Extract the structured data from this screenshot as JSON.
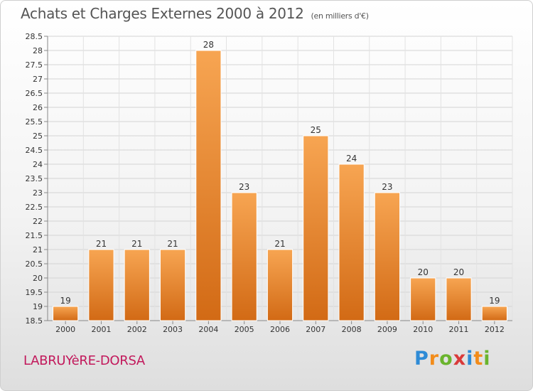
{
  "chart_data": {
    "type": "bar",
    "title": "Achats et Charges Externes 2000 à 2012",
    "subtitle": "(en milliers d'€)",
    "categories": [
      "2000",
      "2001",
      "2002",
      "2003",
      "2004",
      "2005",
      "2006",
      "2007",
      "2008",
      "2009",
      "2010",
      "2011",
      "2012"
    ],
    "values": [
      19,
      21,
      21,
      21,
      28,
      23,
      21,
      25,
      24,
      23,
      20,
      20,
      19
    ],
    "data_labels": [
      "19",
      "21",
      "21",
      "21",
      "28",
      "23",
      "21",
      "25",
      "24",
      "23",
      "20",
      "20",
      "19"
    ],
    "xlabel": "",
    "ylabel": "",
    "ylim": [
      18.5,
      28.5
    ],
    "yticks": [
      18.5,
      19,
      19.5,
      20,
      20.5,
      21,
      21.5,
      22,
      22.5,
      23,
      23.5,
      24,
      24.5,
      25,
      25.5,
      26,
      26.5,
      27,
      27.5,
      28,
      28.5
    ],
    "grid": true,
    "bar_color": "#f19a3e"
  },
  "footer": {
    "place": "LABRUYèRE-DORSA"
  },
  "logo": {
    "letters": [
      "P",
      "r",
      "o",
      "x",
      "i",
      "t",
      "i"
    ],
    "colors": [
      "#2e8bd6",
      "#f28c1b",
      "#6ab42d",
      "#d93a3a",
      "#2e8bd6",
      "#f28c1b",
      "#6ab42d"
    ]
  }
}
